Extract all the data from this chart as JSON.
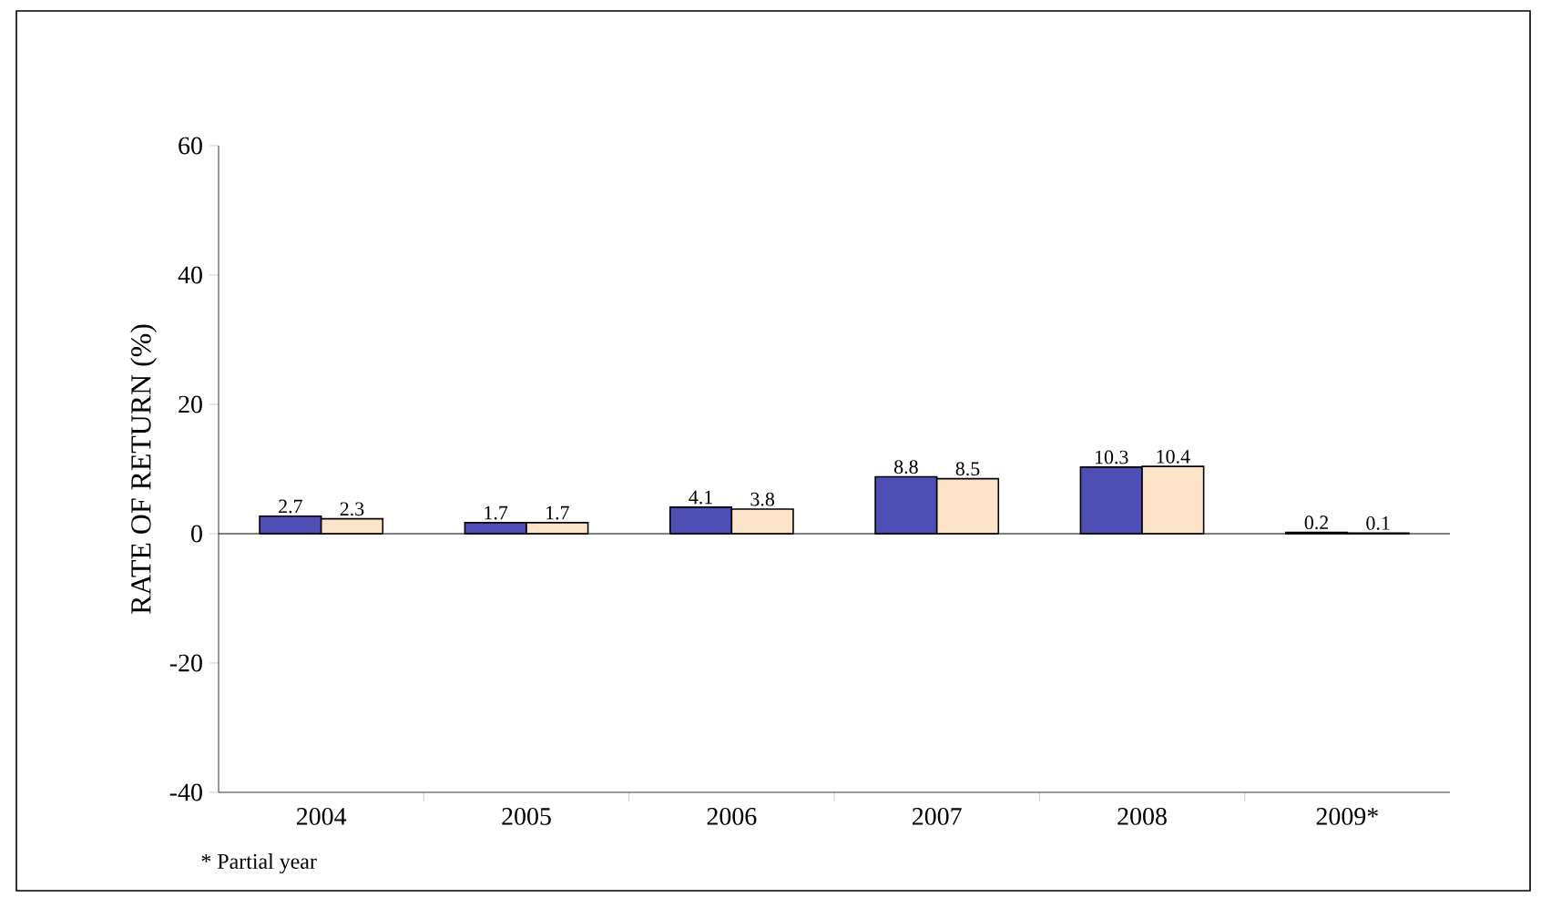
{
  "chart_data": {
    "type": "bar",
    "ylabel": "RATE OF RETURN (%)",
    "categories": [
      "2004",
      "2005",
      "2006",
      "2007",
      "2008",
      "2009*"
    ],
    "series": [
      {
        "color": "#4e4eb4",
        "values": [
          2.7,
          1.7,
          4.1,
          8.8,
          10.3,
          0.2
        ]
      },
      {
        "color": "#fde4c9",
        "values": [
          2.3,
          1.7,
          3.8,
          8.5,
          10.4,
          0.1
        ]
      }
    ],
    "ylim": [
      -40,
      60
    ],
    "yticks": [
      -40,
      -20,
      0,
      20,
      40,
      60
    ],
    "data_labels": true,
    "annotations": [
      "* Partial year"
    ]
  }
}
